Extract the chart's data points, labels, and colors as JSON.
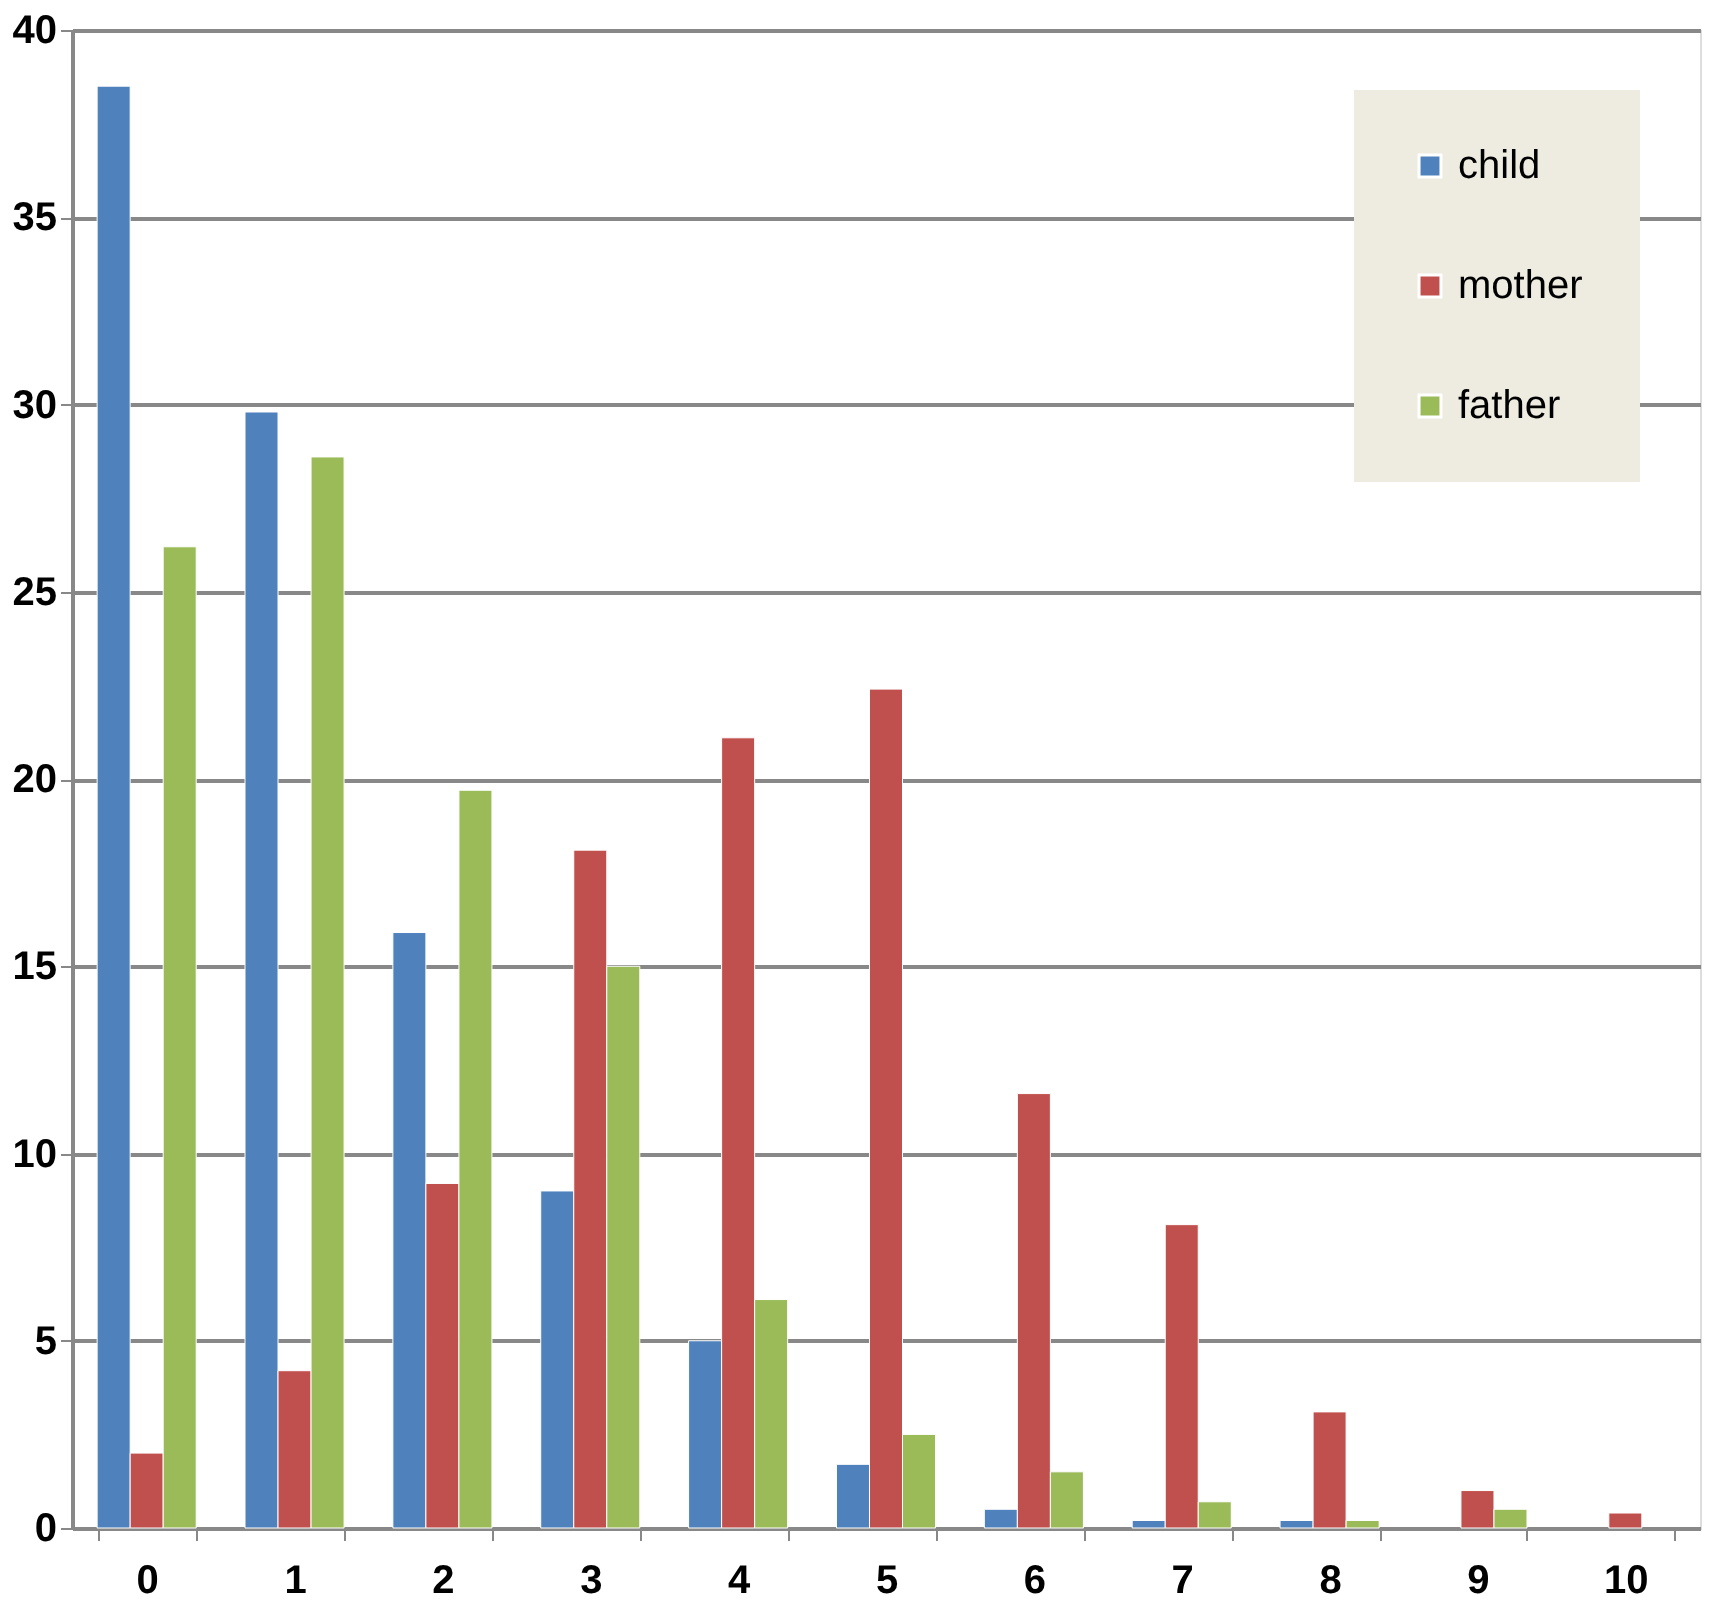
{
  "chart_data": {
    "type": "bar",
    "categories": [
      "0",
      "1",
      "2",
      "3",
      "4",
      "5",
      "6",
      "7",
      "8",
      "9",
      "10"
    ],
    "series": [
      {
        "name": "child",
        "color": "#4f81bd",
        "values": [
          38.5,
          29.8,
          15.9,
          9.0,
          5.0,
          1.7,
          0.5,
          0.2,
          0.2,
          null,
          null
        ]
      },
      {
        "name": "mother",
        "color": "#c0504d",
        "values": [
          2.0,
          4.2,
          9.2,
          18.1,
          21.1,
          22.4,
          11.6,
          8.1,
          3.1,
          1.0,
          0.4
        ]
      },
      {
        "name": "father",
        "color": "#9bbb59",
        "values": [
          26.2,
          28.6,
          19.7,
          15.0,
          6.1,
          2.5,
          1.5,
          0.7,
          0.2,
          0.5,
          null
        ]
      }
    ],
    "ylim": [
      0,
      40
    ],
    "yticks": [
      0,
      5,
      10,
      15,
      20,
      25,
      30,
      35,
      40
    ],
    "grid": "y",
    "legend": "top right"
  }
}
